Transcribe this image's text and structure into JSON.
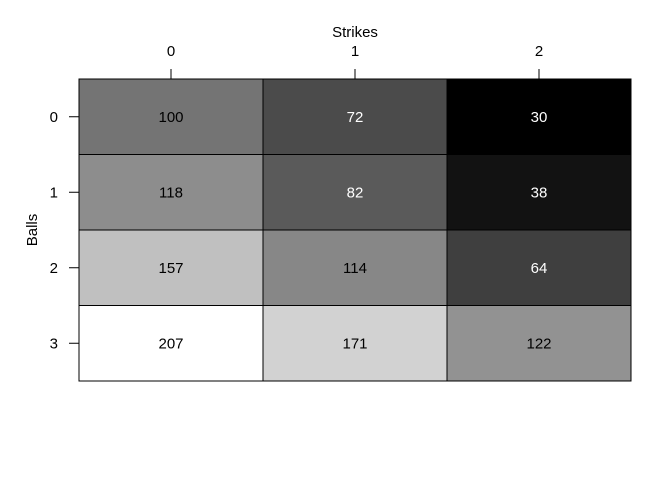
{
  "chart_data": {
    "type": "heatmap",
    "title": "",
    "xlabel": "Strikes",
    "ylabel": "Balls",
    "x_categories": [
      "0",
      "1",
      "2"
    ],
    "y_categories": [
      "0",
      "1",
      "2",
      "3"
    ],
    "values": [
      [
        100,
        72,
        30
      ],
      [
        118,
        82,
        38
      ],
      [
        157,
        114,
        64
      ],
      [
        207,
        171,
        122
      ]
    ],
    "color_scale": "grayscale",
    "color_range": [
      "#000000",
      "#ffffff"
    ],
    "x_axis_position": "top",
    "grid": false,
    "legend": "none"
  }
}
